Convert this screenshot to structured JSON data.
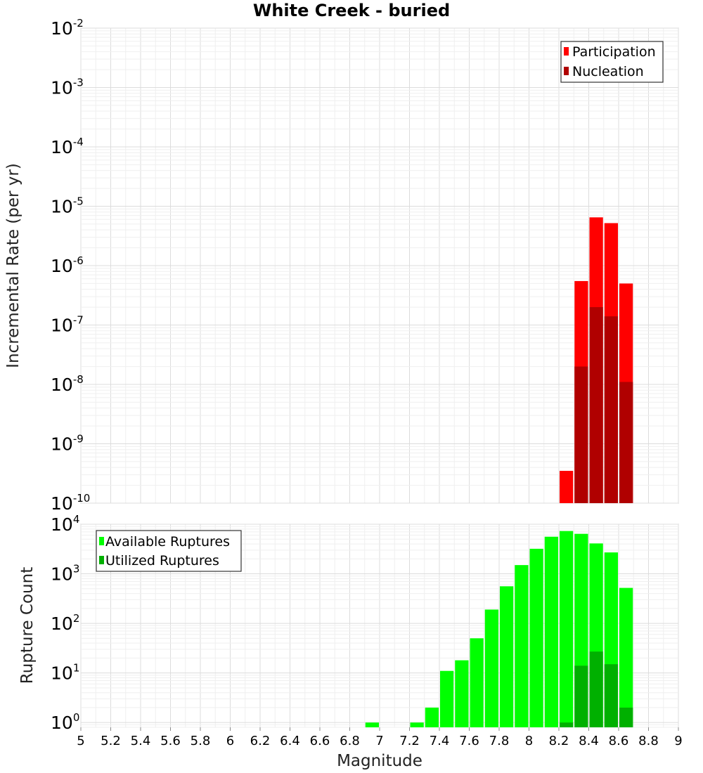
{
  "chart_data": [
    {
      "type": "bar",
      "title": "White Creek - buried",
      "xlabel": "",
      "ylabel": "Incremental Rate (per yr)",
      "yscale": "log",
      "ylim": [
        1e-10,
        0.01
      ],
      "xlim": [
        5,
        9
      ],
      "bin_width": 0.1,
      "ytick_exponents": [
        -2,
        -3,
        -4,
        -5,
        -6,
        -7,
        -8,
        -9,
        -10
      ],
      "legend_position": "top-right",
      "series": [
        {
          "name": "Participation",
          "color": "#ff0000",
          "points": [
            [
              8.25,
              3.5e-10
            ],
            [
              8.35,
              5.5e-07
            ],
            [
              8.45,
              6.5e-06
            ],
            [
              8.55,
              5.2e-06
            ],
            [
              8.65,
              5e-07
            ]
          ]
        },
        {
          "name": "Nucleation",
          "color": "#b00000",
          "points": [
            [
              8.35,
              2e-08
            ],
            [
              8.45,
              2e-07
            ],
            [
              8.55,
              1.4e-07
            ],
            [
              8.65,
              1.1e-08
            ]
          ]
        }
      ]
    },
    {
      "type": "bar",
      "title": "",
      "xlabel": "Magnitude",
      "ylabel": "Rupture Count",
      "yscale": "log",
      "ylim": [
        0.8,
        10000
      ],
      "xlim": [
        5,
        9
      ],
      "bin_width": 0.1,
      "ytick_exponents": [
        4,
        3,
        2,
        1,
        0
      ],
      "xticks": [
        "5",
        "5.2",
        "5.4",
        "5.6",
        "5.8",
        "6",
        "6.2",
        "6.4",
        "6.6",
        "6.8",
        "7",
        "7.2",
        "7.4",
        "7.6",
        "7.8",
        "8",
        "8.2",
        "8.4",
        "8.6",
        "8.8",
        "9"
      ],
      "legend_position": "top-left",
      "series": [
        {
          "name": "Available Ruptures",
          "color": "#00ff00",
          "points": [
            [
              6.95,
              1
            ],
            [
              7.25,
              1
            ],
            [
              7.35,
              2
            ],
            [
              7.45,
              11
            ],
            [
              7.55,
              18
            ],
            [
              7.65,
              50
            ],
            [
              7.75,
              190
            ],
            [
              7.85,
              560
            ],
            [
              7.95,
              1500
            ],
            [
              8.05,
              3200
            ],
            [
              8.15,
              5600
            ],
            [
              8.25,
              7300
            ],
            [
              8.35,
              6400
            ],
            [
              8.45,
              4100
            ],
            [
              8.55,
              2700
            ],
            [
              8.65,
              520
            ]
          ]
        },
        {
          "name": "Utilized Ruptures",
          "color": "#00b000",
          "points": [
            [
              8.25,
              1
            ],
            [
              8.35,
              14
            ],
            [
              8.45,
              27
            ],
            [
              8.55,
              15
            ],
            [
              8.65,
              2
            ]
          ]
        }
      ]
    }
  ]
}
